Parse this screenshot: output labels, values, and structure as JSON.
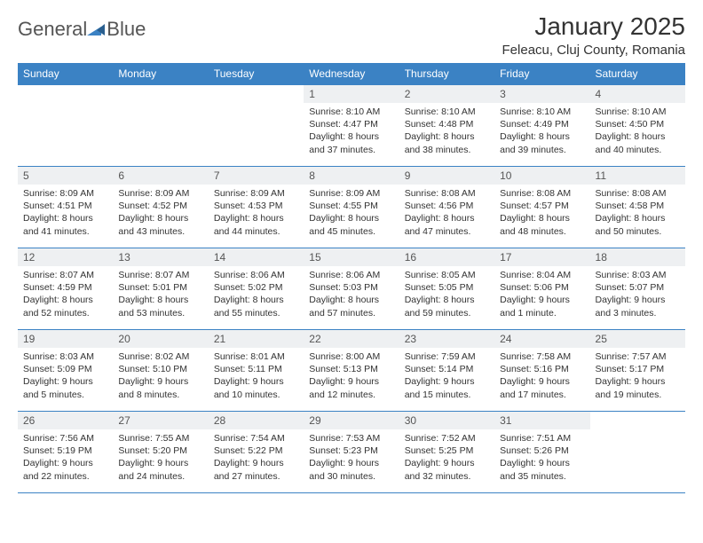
{
  "logo": {
    "text_general": "General",
    "text_blue": "Blue"
  },
  "header": {
    "title": "January 2025",
    "location": "Feleacu, Cluj County, Romania"
  },
  "style": {
    "header_bg": "#3b82c4",
    "header_fg": "#ffffff",
    "border_color": "#3b82c4",
    "daynum_bg": "#eef0f2",
    "daynum_fg": "#555555",
    "text_color": "#333333",
    "logo_gray": "#555555",
    "logo_blue": "#3b82c4",
    "bg": "#ffffff",
    "title_fontsize": 28,
    "location_fontsize": 15,
    "dayhead_fontsize": 12,
    "daynum_fontsize": 12,
    "cell_fontsize": 10.5
  },
  "weekdays": [
    "Sunday",
    "Monday",
    "Tuesday",
    "Wednesday",
    "Thursday",
    "Friday",
    "Saturday"
  ],
  "weeks": [
    [
      null,
      null,
      null,
      {
        "n": "1",
        "sr": "8:10 AM",
        "ss": "4:47 PM",
        "dl": "8 hours and 37 minutes."
      },
      {
        "n": "2",
        "sr": "8:10 AM",
        "ss": "4:48 PM",
        "dl": "8 hours and 38 minutes."
      },
      {
        "n": "3",
        "sr": "8:10 AM",
        "ss": "4:49 PM",
        "dl": "8 hours and 39 minutes."
      },
      {
        "n": "4",
        "sr": "8:10 AM",
        "ss": "4:50 PM",
        "dl": "8 hours and 40 minutes."
      }
    ],
    [
      {
        "n": "5",
        "sr": "8:09 AM",
        "ss": "4:51 PM",
        "dl": "8 hours and 41 minutes."
      },
      {
        "n": "6",
        "sr": "8:09 AM",
        "ss": "4:52 PM",
        "dl": "8 hours and 43 minutes."
      },
      {
        "n": "7",
        "sr": "8:09 AM",
        "ss": "4:53 PM",
        "dl": "8 hours and 44 minutes."
      },
      {
        "n": "8",
        "sr": "8:09 AM",
        "ss": "4:55 PM",
        "dl": "8 hours and 45 minutes."
      },
      {
        "n": "9",
        "sr": "8:08 AM",
        "ss": "4:56 PM",
        "dl": "8 hours and 47 minutes."
      },
      {
        "n": "10",
        "sr": "8:08 AM",
        "ss": "4:57 PM",
        "dl": "8 hours and 48 minutes."
      },
      {
        "n": "11",
        "sr": "8:08 AM",
        "ss": "4:58 PM",
        "dl": "8 hours and 50 minutes."
      }
    ],
    [
      {
        "n": "12",
        "sr": "8:07 AM",
        "ss": "4:59 PM",
        "dl": "8 hours and 52 minutes."
      },
      {
        "n": "13",
        "sr": "8:07 AM",
        "ss": "5:01 PM",
        "dl": "8 hours and 53 minutes."
      },
      {
        "n": "14",
        "sr": "8:06 AM",
        "ss": "5:02 PM",
        "dl": "8 hours and 55 minutes."
      },
      {
        "n": "15",
        "sr": "8:06 AM",
        "ss": "5:03 PM",
        "dl": "8 hours and 57 minutes."
      },
      {
        "n": "16",
        "sr": "8:05 AM",
        "ss": "5:05 PM",
        "dl": "8 hours and 59 minutes."
      },
      {
        "n": "17",
        "sr": "8:04 AM",
        "ss": "5:06 PM",
        "dl": "9 hours and 1 minute."
      },
      {
        "n": "18",
        "sr": "8:03 AM",
        "ss": "5:07 PM",
        "dl": "9 hours and 3 minutes."
      }
    ],
    [
      {
        "n": "19",
        "sr": "8:03 AM",
        "ss": "5:09 PM",
        "dl": "9 hours and 5 minutes."
      },
      {
        "n": "20",
        "sr": "8:02 AM",
        "ss": "5:10 PM",
        "dl": "9 hours and 8 minutes."
      },
      {
        "n": "21",
        "sr": "8:01 AM",
        "ss": "5:11 PM",
        "dl": "9 hours and 10 minutes."
      },
      {
        "n": "22",
        "sr": "8:00 AM",
        "ss": "5:13 PM",
        "dl": "9 hours and 12 minutes."
      },
      {
        "n": "23",
        "sr": "7:59 AM",
        "ss": "5:14 PM",
        "dl": "9 hours and 15 minutes."
      },
      {
        "n": "24",
        "sr": "7:58 AM",
        "ss": "5:16 PM",
        "dl": "9 hours and 17 minutes."
      },
      {
        "n": "25",
        "sr": "7:57 AM",
        "ss": "5:17 PM",
        "dl": "9 hours and 19 minutes."
      }
    ],
    [
      {
        "n": "26",
        "sr": "7:56 AM",
        "ss": "5:19 PM",
        "dl": "9 hours and 22 minutes."
      },
      {
        "n": "27",
        "sr": "7:55 AM",
        "ss": "5:20 PM",
        "dl": "9 hours and 24 minutes."
      },
      {
        "n": "28",
        "sr": "7:54 AM",
        "ss": "5:22 PM",
        "dl": "9 hours and 27 minutes."
      },
      {
        "n": "29",
        "sr": "7:53 AM",
        "ss": "5:23 PM",
        "dl": "9 hours and 30 minutes."
      },
      {
        "n": "30",
        "sr": "7:52 AM",
        "ss": "5:25 PM",
        "dl": "9 hours and 32 minutes."
      },
      {
        "n": "31",
        "sr": "7:51 AM",
        "ss": "5:26 PM",
        "dl": "9 hours and 35 minutes."
      },
      null
    ]
  ],
  "labels": {
    "sunrise": "Sunrise:",
    "sunset": "Sunset:",
    "daylight": "Daylight:"
  }
}
